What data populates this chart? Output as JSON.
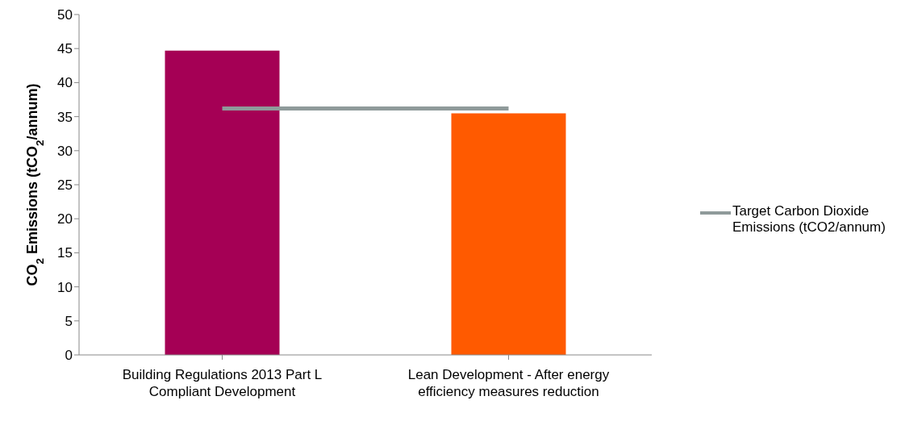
{
  "chart_data": {
    "type": "bar",
    "ylabel": "CO$_{2}$ Emissions (tCO$_{2}$/annum)",
    "categories": [
      "Building Regulations 2013 Part L Compliant Development",
      "Lean Development - After energy efficiency measures reduction"
    ],
    "series": [
      {
        "colors": [
          "#a50055",
          "#ff5a00"
        ],
        "values": [
          44.7,
          35.5
        ]
      },
      {
        "type": "line",
        "name": "Target Carbon Dioxide Emissions (tCO2/annum)",
        "color": "#8f9a9a",
        "values": [
          36.2,
          36.2
        ],
        "marker": "none"
      }
    ],
    "ylim": [
      0,
      50
    ],
    "yticks": [
      0,
      5,
      10,
      15,
      20,
      25,
      30,
      35,
      40,
      45,
      50
    ],
    "grid": false,
    "legend": "right"
  }
}
